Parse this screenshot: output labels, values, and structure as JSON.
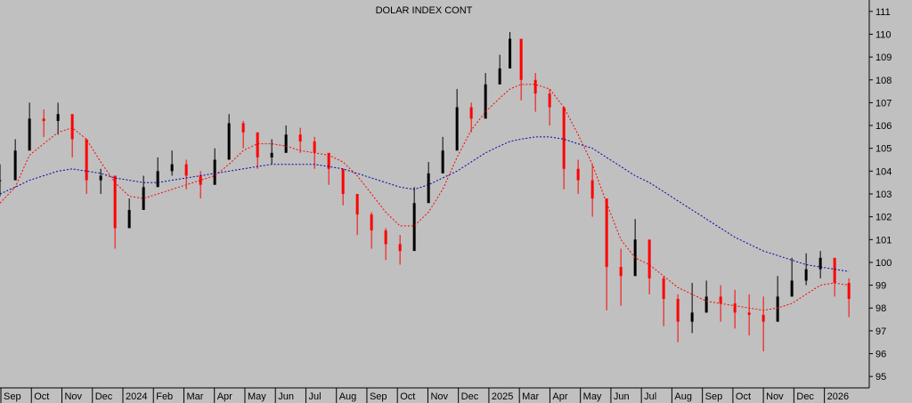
{
  "chart_data": {
    "type": "candlestick",
    "title": "DOLAR INDEX CONT",
    "xlabel": "",
    "ylabel": "",
    "ylim": [
      94.5,
      111.5
    ],
    "y_ticks": [
      95,
      96,
      97,
      98,
      99,
      100,
      101,
      102,
      103,
      104,
      105,
      106,
      107,
      108,
      109,
      110,
      111
    ],
    "x_ticks": [
      "Sep",
      "Oct",
      "Nov",
      "Dec",
      "2024",
      "Feb",
      "Mar",
      "Apr",
      "May",
      "Jun",
      "Jul",
      "Aug",
      "Sep",
      "Oct",
      "Nov",
      "Dec",
      "2025",
      "Mar",
      "Apr",
      "May",
      "Jun",
      "Jul",
      "Aug",
      "Sep",
      "Oct",
      "Nov",
      "Dec",
      "2026"
    ],
    "x": [
      "2023-08-31",
      "2023-09-15",
      "2023-09-29",
      "2023-10-13",
      "2023-10-27",
      "2023-11-10",
      "2023-11-24",
      "2023-12-08",
      "2023-12-22",
      "2024-01-05",
      "2024-01-19",
      "2024-02-02",
      "2024-02-16",
      "2024-03-01",
      "2024-03-15",
      "2024-03-29",
      "2024-04-12",
      "2024-04-26",
      "2024-05-10",
      "2024-05-24",
      "2024-06-07",
      "2024-06-21",
      "2024-07-05",
      "2024-07-19",
      "2024-08-02",
      "2024-08-16",
      "2024-08-30",
      "2024-09-13",
      "2024-09-27",
      "2024-10-11",
      "2024-10-25",
      "2024-11-08",
      "2024-11-22",
      "2024-12-06",
      "2024-12-20",
      "2025-01-03",
      "2025-01-13",
      "2025-01-24",
      "2025-02-07",
      "2025-02-21",
      "2025-03-07",
      "2025-03-21",
      "2025-04-04",
      "2025-04-18",
      "2025-05-02",
      "2025-05-16",
      "2025-05-30",
      "2025-06-13",
      "2025-06-27",
      "2025-07-11",
      "2025-07-25",
      "2025-08-08",
      "2025-08-22",
      "2025-09-05",
      "2025-09-19",
      "2025-10-03",
      "2025-10-17",
      "2025-10-31",
      "2025-11-14",
      "2025-11-28",
      "2025-12-12"
    ],
    "close": [
      103.6,
      104.9,
      106.3,
      106.2,
      106.5,
      105.4,
      103.6,
      103.8,
      101.5,
      102.3,
      103.3,
      104.0,
      104.3,
      103.8,
      103.4,
      104.5,
      106.1,
      105.7,
      104.6,
      104.8,
      105.6,
      105.3,
      104.8,
      104.1,
      103.0,
      102.1,
      101.4,
      100.8,
      100.5,
      102.6,
      103.9,
      104.9,
      106.8,
      106.3,
      107.8,
      108.5,
      109.8,
      108.0,
      107.4,
      106.8,
      104.1,
      103.6,
      102.8,
      99.8,
      99.4,
      101.0,
      99.3,
      98.4,
      97.4,
      97.8,
      98.5,
      98.2,
      97.8,
      97.7,
      97.4,
      98.5,
      99.2,
      99.7,
      100.2,
      99.1,
      98.4
    ],
    "high": [
      104.3,
      105.4,
      107.0,
      106.7,
      107.0,
      106.1,
      104.2,
      104.1,
      102.5,
      102.8,
      103.8,
      104.6,
      104.9,
      104.5,
      104.0,
      105.0,
      106.5,
      106.2,
      105.3,
      105.4,
      106.0,
      105.9,
      105.5,
      104.6,
      103.8,
      102.8,
      102.2,
      101.5,
      101.2,
      103.3,
      104.4,
      105.5,
      107.6,
      107.0,
      108.3,
      109.1,
      110.1,
      108.8,
      108.3,
      107.6,
      105.4,
      104.5,
      104.3,
      101.4,
      100.6,
      101.9,
      100.4,
      99.4,
      98.6,
      99.1,
      99.2,
      99.0,
      98.8,
      98.6,
      98.5,
      99.4,
      100.2,
      100.4,
      100.5,
      100.0,
      99.3
    ],
    "low": [
      102.9,
      104.3,
      105.6,
      105.5,
      105.6,
      104.6,
      103.0,
      103.0,
      100.6,
      101.6,
      102.7,
      103.4,
      103.8,
      103.2,
      102.8,
      104.0,
      105.6,
      105.0,
      104.1,
      104.3,
      105.0,
      104.8,
      104.1,
      103.4,
      102.5,
      101.2,
      100.6,
      100.1,
      99.9,
      101.9,
      103.4,
      104.3,
      106.2,
      105.7,
      107.1,
      107.9,
      109.1,
      107.1,
      106.6,
      106.0,
      103.2,
      103.0,
      102.0,
      97.9,
      98.1,
      100.0,
      98.6,
      97.2,
      96.5,
      96.9,
      97.8,
      97.4,
      97.1,
      96.8,
      96.1,
      97.8,
      98.6,
      99.0,
      99.3,
      98.5,
      97.6
    ],
    "series": [
      {
        "values": [
          102.6,
          103.3,
          104.7,
          105.2,
          105.7,
          105.9,
          105.4,
          104.4,
          103.5,
          102.9,
          102.8,
          103.0,
          103.2,
          103.4,
          103.6,
          103.8,
          104.3,
          104.9,
          105.2,
          105.2,
          105.1,
          104.9,
          104.8,
          104.7,
          104.4,
          103.8,
          103.0,
          102.2,
          101.6,
          101.6,
          102.2,
          103.2,
          104.6,
          105.8,
          106.6,
          107.2,
          107.6,
          107.8,
          107.8,
          107.6,
          106.8,
          105.6,
          104.3,
          102.6,
          101.0,
          100.2,
          99.9,
          99.4,
          98.9,
          98.6,
          98.3,
          98.2,
          98.1,
          98.0,
          97.9,
          98.0,
          98.2,
          98.6,
          99.0,
          99.1,
          99.0
        ]
      },
      {
        "values": [
          103.0,
          103.3,
          103.6,
          103.8,
          104.0,
          104.1,
          104.0,
          103.9,
          103.7,
          103.6,
          103.5,
          103.5,
          103.6,
          103.7,
          103.8,
          103.9,
          104.0,
          104.1,
          104.2,
          104.3,
          104.3,
          104.3,
          104.3,
          104.2,
          104.1,
          103.9,
          103.7,
          103.5,
          103.3,
          103.2,
          103.4,
          103.7,
          104.0,
          104.4,
          104.8,
          105.1,
          105.3,
          105.4,
          105.5,
          105.5,
          105.4,
          105.2,
          105.0,
          104.6,
          104.2,
          103.8,
          103.5,
          103.1,
          102.7,
          102.3,
          101.9,
          101.5,
          101.1,
          100.8,
          100.5,
          100.3,
          100.1,
          99.9,
          99.8,
          99.7,
          99.6
        ]
      }
    ],
    "colors": {
      "up": "#000000",
      "down": "#ff0000",
      "fast_ma": "#ff0000",
      "slow_ma": "#0000aa",
      "background": "#c0c0c0"
    },
    "grid": false,
    "y_axis_side": "right"
  }
}
